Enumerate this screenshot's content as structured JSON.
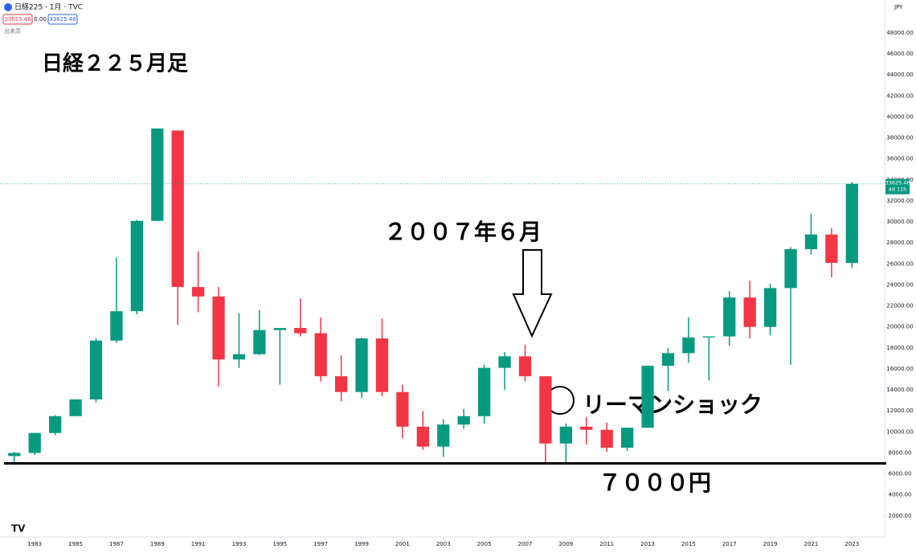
{
  "ui": {
    "symbol": "日経225 · 1月 · TVC",
    "bid": "33625.46",
    "spread": "0.00",
    "ask": "33625.46",
    "volume_label": "出来高",
    "currency": "JPY",
    "countdown": "4d 11h"
  },
  "chart_data": {
    "type": "candlestick",
    "title": "日経２２５月足",
    "annotations": [
      "２００７年６月",
      "リーマンショック",
      "７０００円"
    ],
    "up_color": "#089981",
    "down_color": "#f23645",
    "x": [
      1982,
      1983,
      1984,
      1985,
      1986,
      1987,
      1988,
      1989,
      1990,
      1991,
      1992,
      1993,
      1994,
      1995,
      1996,
      1997,
      1998,
      1999,
      2000,
      2001,
      2002,
      2003,
      2004,
      2005,
      2006,
      2007,
      2008,
      2009,
      2010,
      2011,
      2012,
      2013,
      2014,
      2015,
      2016,
      2017,
      2018,
      2019,
      2020,
      2021,
      2022,
      2023
    ],
    "open": [
      7700,
      8000,
      9900,
      11500,
      13100,
      18700,
      21500,
      30100,
      38700,
      23800,
      22900,
      16900,
      17400,
      19700,
      19900,
      19400,
      15300,
      13800,
      18900,
      13800,
      10500,
      8600,
      10700,
      11500,
      16100,
      17200,
      15300,
      8900,
      10500,
      10200,
      8500,
      10400,
      16300,
      17500,
      19000,
      19100,
      22800,
      20000,
      23700,
      27400,
      28800,
      26100
    ],
    "high": [
      8100,
      9900,
      11600,
      13100,
      18900,
      26600,
      30200,
      38900,
      38700,
      27200,
      23800,
      21300,
      21600,
      19700,
      22700,
      20900,
      17300,
      19000,
      20800,
      14500,
      12000,
      11200,
      12200,
      16400,
      17600,
      18300,
      15200,
      10800,
      11400,
      10900,
      10400,
      16300,
      18000,
      20900,
      19000,
      23400,
      24400,
      24100,
      27600,
      30800,
      29400,
      33800
    ],
    "low": [
      6850,
      7800,
      9700,
      11500,
      12800,
      18500,
      21200,
      30100,
      20200,
      21400,
      14300,
      16100,
      17300,
      14500,
      19100,
      14800,
      12900,
      13200,
      13400,
      9400,
      8300,
      7600,
      10300,
      10800,
      14000,
      14800,
      6900,
      7000,
      8800,
      8100,
      8200,
      10400,
      13900,
      16600,
      14900,
      18200,
      18900,
      19200,
      16400,
      26900,
      24700,
      25600
    ],
    "close": [
      8000,
      9900,
      11500,
      13100,
      18700,
      21500,
      30100,
      38900,
      23800,
      22900,
      16900,
      17400,
      19700,
      19900,
      19400,
      15300,
      13800,
      18900,
      13800,
      10500,
      8600,
      10700,
      11500,
      16100,
      17200,
      15300,
      8900,
      10500,
      10200,
      8500,
      10400,
      16300,
      17500,
      19000,
      19100,
      22800,
      20000,
      23700,
      27400,
      28800,
      26100,
      33625.46
    ],
    "last_price": 33625.46,
    "reference_line": 7000,
    "xlim": [
      1981.3,
      2024.6
    ],
    "ylim": [
      0,
      51134
    ],
    "xticks": [
      1983,
      1985,
      1987,
      1989,
      1991,
      1993,
      1995,
      1997,
      1999,
      2001,
      2003,
      2005,
      2007,
      2009,
      2011,
      2013,
      2015,
      2017,
      2019,
      2021,
      2023
    ],
    "yticks": [
      {
        "value": 2000,
        "label": "2000.00"
      },
      {
        "value": 4000,
        "label": "4000.00"
      },
      {
        "value": 6000,
        "label": "6000.00"
      },
      {
        "value": 8000,
        "label": "8000.00"
      },
      {
        "value": 10000,
        "label": "10000.00"
      },
      {
        "value": 12000,
        "label": "12000.00"
      },
      {
        "value": 14000,
        "label": "14000.00"
      },
      {
        "value": 16000,
        "label": "16000.00"
      },
      {
        "value": 18000,
        "label": "18000.00"
      },
      {
        "value": 20000,
        "label": "20000.00"
      },
      {
        "value": 22000,
        "label": "22000.00"
      },
      {
        "value": 24000,
        "label": "24000.00"
      },
      {
        "value": 26000,
        "label": "26000.00"
      },
      {
        "value": 28000,
        "label": "28000.00"
      },
      {
        "value": 30000,
        "label": "30000.00"
      },
      {
        "value": 32000,
        "label": "32000.00"
      },
      {
        "value": 34000,
        "label": "34000.00"
      },
      {
        "value": 36000,
        "label": "36000.00"
      },
      {
        "value": 38000,
        "label": "38000.00"
      },
      {
        "value": 40000,
        "label": "40000.00"
      },
      {
        "value": 42000,
        "label": "42000.00"
      },
      {
        "value": 44000,
        "label": "44000.00"
      },
      {
        "value": 46000,
        "label": "46000.00"
      },
      {
        "value": 48000,
        "label": "48000.00"
      }
    ],
    "grid": false
  }
}
